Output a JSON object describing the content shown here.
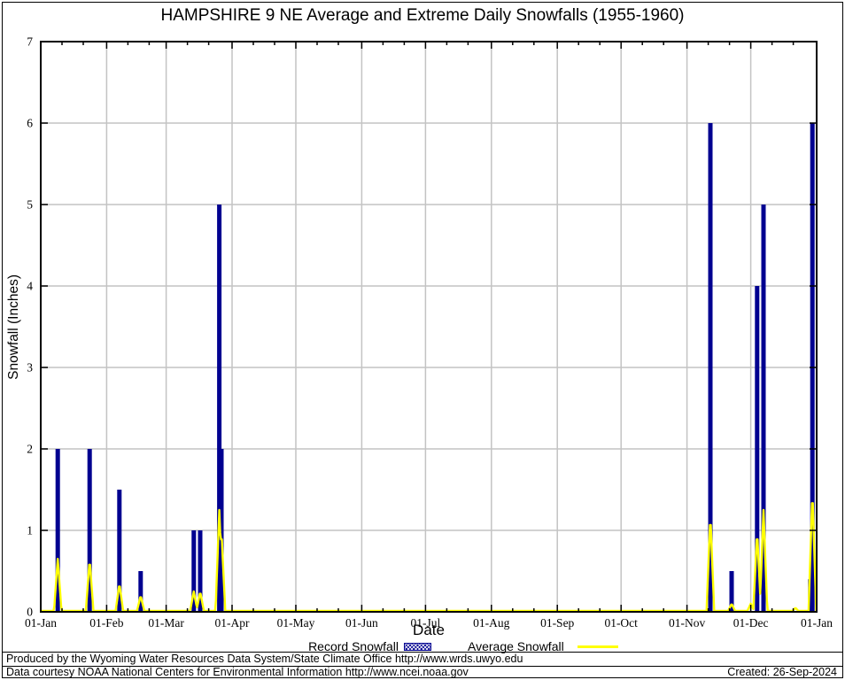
{
  "legend": {
    "record_label": "Record Snowfall",
    "average_label": "Average Snowfall"
  },
  "footer": {
    "line1": "Produced by the Wyoming Water Resources Data System/State Climate Office http://www.wrds.uwyo.edu",
    "line2": "Data courtesy NOAA National Centers for Environmental Information http://www.ncei.noaa.gov",
    "created": "Created: 26-Sep-2024"
  },
  "colors": {
    "record_bar": "#000090",
    "average_line": "#ffff00",
    "gridline": "#c3c3c3",
    "axis": "#000000",
    "background": "#ffffff"
  },
  "chart_data": {
    "type": "bar",
    "title": "HAMPSHIRE 9 NE Average and Extreme Daily Snowfalls (1955-1960)",
    "xlabel": "Date",
    "ylabel": "Snowfall (Inches)",
    "ylim": [
      0,
      7
    ],
    "yticks": [
      0,
      1,
      2,
      3,
      4,
      5,
      6,
      7
    ],
    "grid": true,
    "legend_position": "bottom",
    "x_tick_labels": [
      "01-Jan",
      "01-Feb",
      "01-Mar",
      "01-Apr",
      "01-May",
      "01-Jun",
      "01-Jul",
      "01-Aug",
      "01-Sep",
      "01-Oct",
      "01-Nov",
      "01-Dec",
      "01-Jan"
    ],
    "month_start_days": [
      1,
      32,
      60,
      91,
      121,
      152,
      182,
      213,
      244,
      274,
      305,
      335,
      366
    ],
    "minor_tick_day_offsets": [
      10,
      20
    ],
    "x_range_days": [
      1,
      366
    ],
    "series": [
      {
        "name": "Record Snowfall",
        "render": "impulse-bar",
        "color": "#000090",
        "points": [
          {
            "date": "09-Jan",
            "day": 9,
            "value": 2.0
          },
          {
            "date": "24-Jan",
            "day": 24,
            "value": 2.0
          },
          {
            "date": "07-Feb",
            "day": 38,
            "value": 1.5
          },
          {
            "date": "17-Feb",
            "day": 48,
            "value": 0.5
          },
          {
            "date": "14-Mar",
            "day": 73,
            "value": 1.0
          },
          {
            "date": "17-Mar",
            "day": 76,
            "value": 1.0
          },
          {
            "date": "26-Mar",
            "day": 85,
            "value": 5.0
          },
          {
            "date": "27-Mar",
            "day": 86,
            "value": 2.0
          },
          {
            "date": "12-Nov",
            "day": 316,
            "value": 6.0
          },
          {
            "date": "22-Nov",
            "day": 326,
            "value": 0.5
          },
          {
            "date": "04-Dec",
            "day": 338,
            "value": 4.0
          },
          {
            "date": "07-Dec",
            "day": 341,
            "value": 5.0
          },
          {
            "date": "29-Dec",
            "day": 363,
            "value": 0.4
          },
          {
            "date": "30-Dec",
            "day": 364,
            "value": 6.0
          }
        ]
      },
      {
        "name": "Average Snowfall",
        "render": "line-spike",
        "color": "#ffff00",
        "points": [
          {
            "date": "09-Jan",
            "day": 9,
            "value": 0.65
          },
          {
            "date": "24-Jan",
            "day": 24,
            "value": 0.65
          },
          {
            "date": "07-Feb",
            "day": 38,
            "value": 0.35
          },
          {
            "date": "17-Feb",
            "day": 48,
            "value": 0.2
          },
          {
            "date": "14-Mar",
            "day": 73,
            "value": 0.25
          },
          {
            "date": "17-Mar",
            "day": 76,
            "value": 0.25
          },
          {
            "date": "26-Mar",
            "day": 85,
            "value": 1.25
          },
          {
            "date": "27-Mar",
            "day": 86,
            "value": 1.0
          },
          {
            "date": "12-Nov",
            "day": 316,
            "value": 1.2
          },
          {
            "date": "22-Nov",
            "day": 326,
            "value": 0.1
          },
          {
            "date": "01-Dec",
            "day": 335,
            "value": 0.1
          },
          {
            "date": "04-Dec",
            "day": 338,
            "value": 1.0
          },
          {
            "date": "07-Dec",
            "day": 341,
            "value": 1.25
          },
          {
            "date": "22-Dec",
            "day": 356,
            "value": 0.05
          },
          {
            "date": "30-Dec",
            "day": 364,
            "value": 1.5
          }
        ]
      }
    ]
  }
}
